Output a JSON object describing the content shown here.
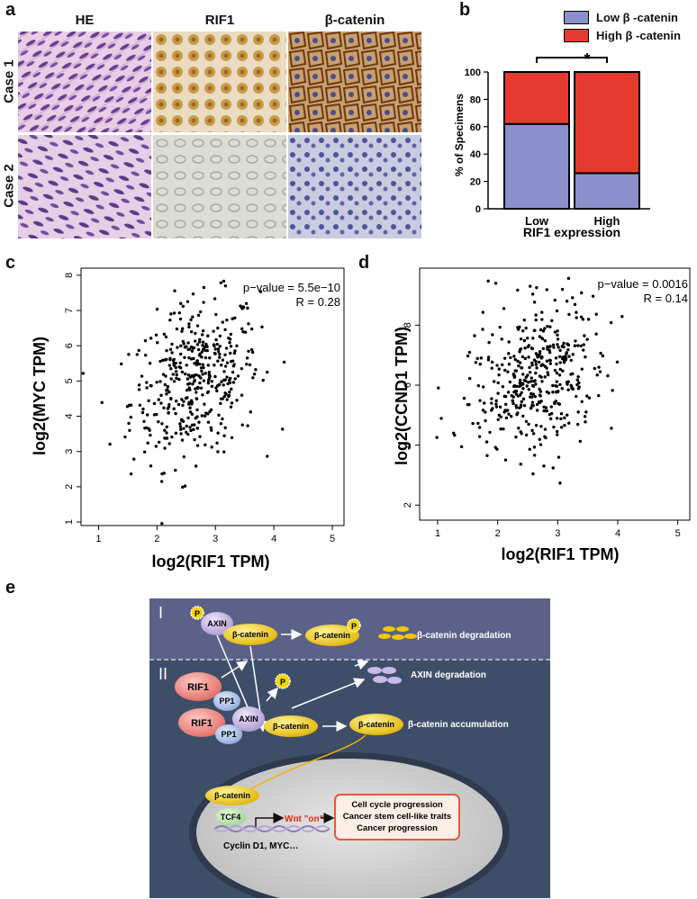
{
  "panels": {
    "a": "a",
    "b": "b",
    "c": "c",
    "d": "d",
    "e": "e"
  },
  "panel_a": {
    "columns": [
      "HE",
      "RIF1",
      "β-catenin"
    ],
    "rows": [
      "Case 1",
      "Case 2"
    ]
  },
  "colors": {
    "low_fill": "#8b8fcb",
    "high_fill": "#e53a2f",
    "scheme_top": "#5c6187",
    "scheme_bottom": "#3f4e68"
  },
  "chart_data": [
    {
      "id": "b",
      "type": "bar",
      "stacked": true,
      "categories": [
        "Low",
        "High"
      ],
      "series": [
        {
          "name": "Low β -catenin",
          "values": [
            62,
            26
          ]
        },
        {
          "name": "High β -catenin",
          "values": [
            38,
            74
          ]
        }
      ],
      "xlabel": "RIF1 expression",
      "ylabel": "% of Specimens",
      "ylim": [
        0,
        100
      ],
      "yticks": [
        "0",
        "20",
        "40",
        "60",
        "80",
        "100"
      ],
      "significance": "*",
      "legend_position": "top-right"
    },
    {
      "id": "c",
      "type": "scatter",
      "xlabel": "log2(RIF1 TPM)",
      "ylabel": "log2(MYC TPM)",
      "xlim": [
        0.7,
        5.2
      ],
      "ylim": [
        0.9,
        8.2
      ],
      "xticks": [
        "1",
        "2",
        "3",
        "4",
        "5"
      ],
      "yticks": [
        "1",
        "2",
        "3",
        "4",
        "5",
        "6",
        "7",
        "8"
      ],
      "annotation": [
        "p−value = 5.5e−10",
        "R = 0.28"
      ]
    },
    {
      "id": "d",
      "type": "scatter",
      "xlabel": "log2(RIF1 TPM)",
      "ylabel": "log2(CCND1 TPM)",
      "xlim": [
        0.7,
        5.2
      ],
      "ylim": [
        1.5,
        9.9
      ],
      "xticks": [
        "1",
        "2",
        "3",
        "4",
        "5"
      ],
      "yticks": [
        "2",
        "4",
        "6",
        "8"
      ],
      "annotation": [
        "p−value = 0.0016",
        "R = 0.14"
      ]
    }
  ],
  "panel_e": {
    "roman_one": "I",
    "roman_two": "II",
    "p": "P",
    "axin": "AXIN",
    "beta_catenin": "β-catenin",
    "rif1": "RIF1",
    "pp1": "PP1",
    "tcf4": "TCF4",
    "beta_degradation": "β-catenin degradation",
    "axin_degradation": "AXIN degradation",
    "beta_accumulation": "β-catenin accumulation",
    "wnt_on": "Wnt \"on\"",
    "outcomes": [
      "Cell cycle progression",
      "Cancer stem cell-like traits",
      "Cancer progression"
    ],
    "targets": "Cyclin D1, MYC…"
  }
}
